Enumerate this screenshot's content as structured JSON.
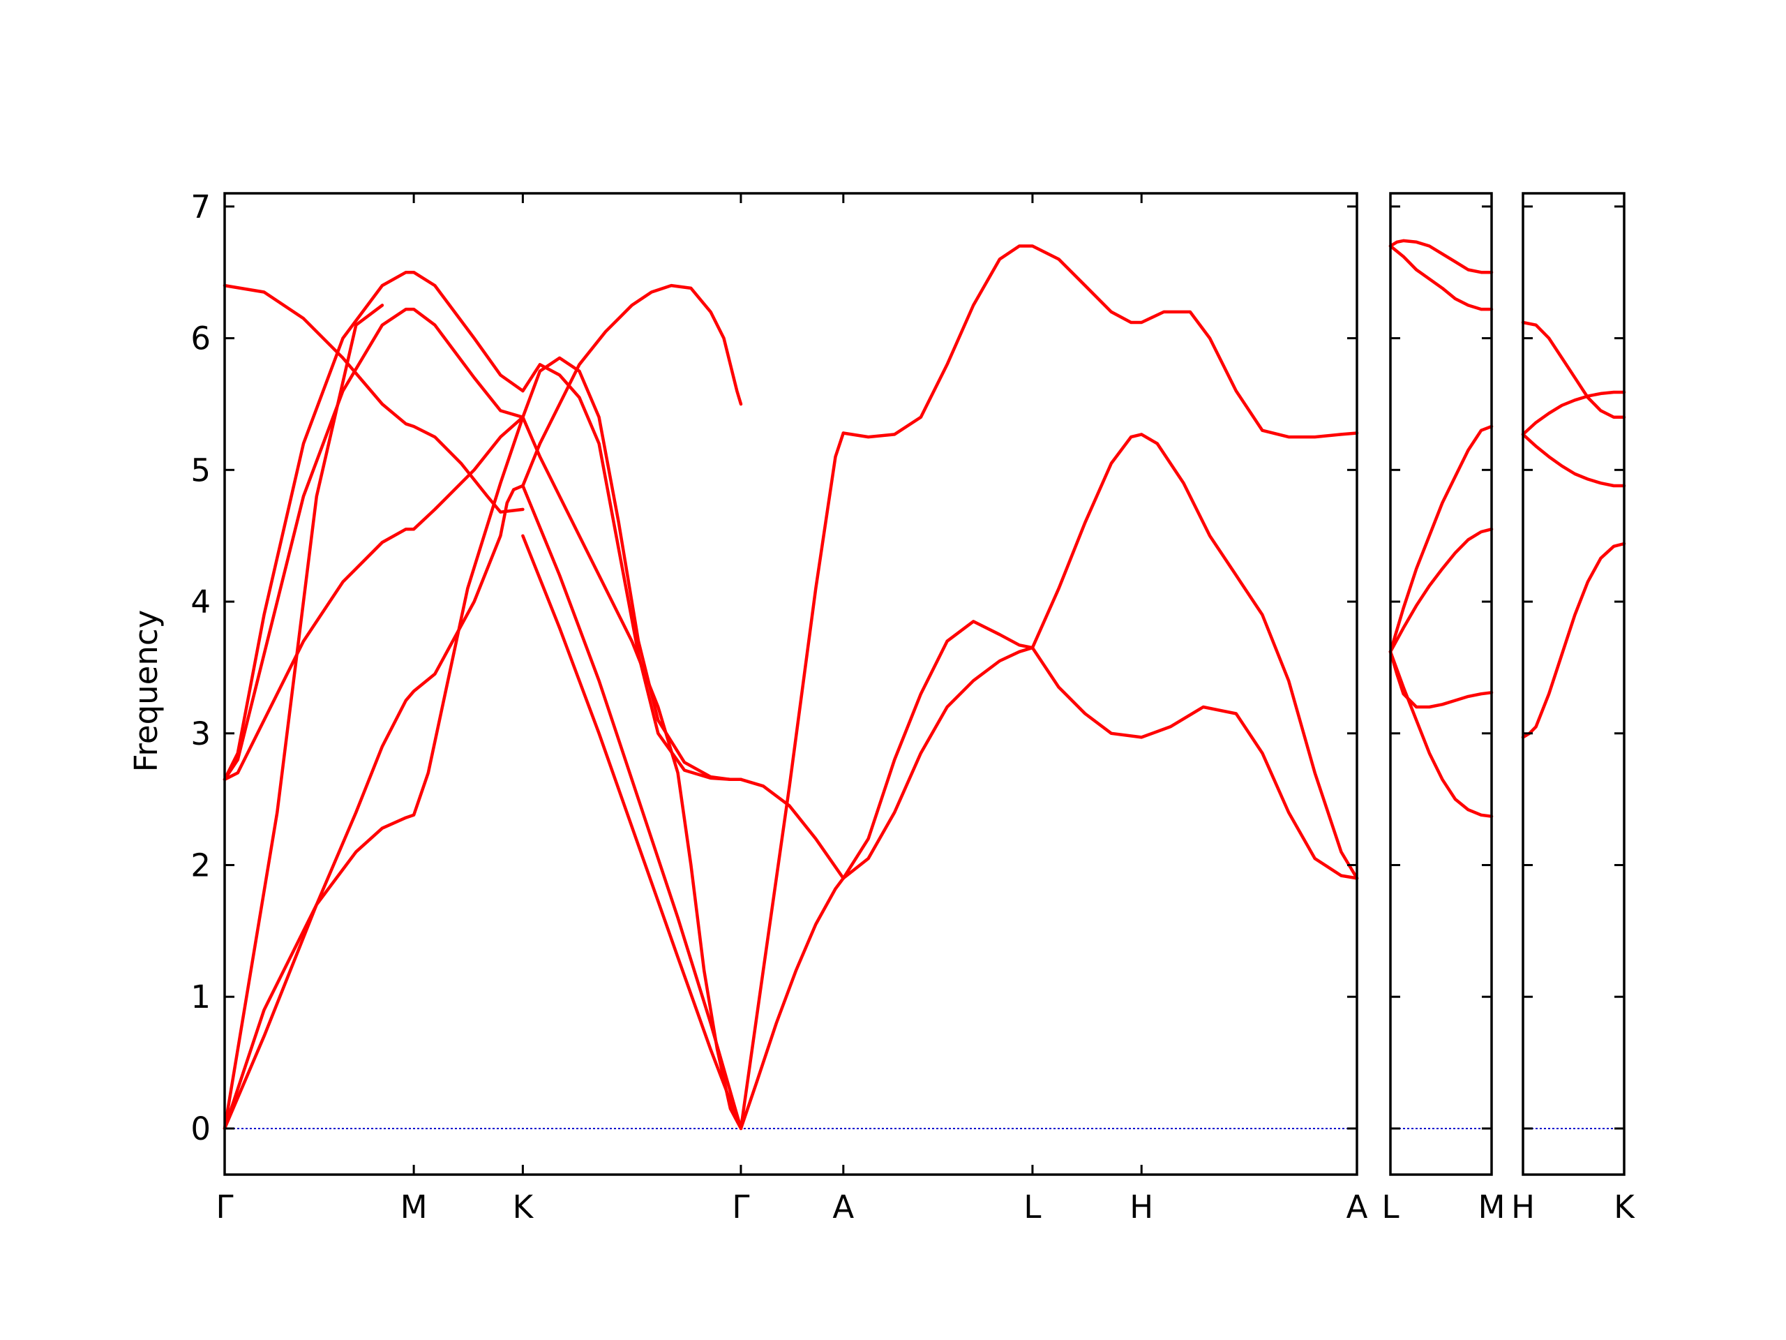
{
  "chart_data": {
    "type": "line",
    "ylabel": "Frequency",
    "ylim": [
      -0.35,
      7.1
    ],
    "yticks": [
      0,
      1,
      2,
      3,
      4,
      5,
      6,
      7
    ],
    "line_color": "#ff0000",
    "zero_line_color": "#0000cc",
    "grid": false,
    "panels": [
      {
        "xlim": [
          0,
          8.62
        ],
        "xticks": [
          {
            "pos": 0.0,
            "label": "Γ"
          },
          {
            "pos": 1.44,
            "label": "M"
          },
          {
            "pos": 2.27,
            "label": "K"
          },
          {
            "pos": 3.93,
            "label": "Γ"
          },
          {
            "pos": 4.71,
            "label": "A"
          },
          {
            "pos": 6.15,
            "label": "L"
          },
          {
            "pos": 6.98,
            "label": "H"
          },
          {
            "pos": 8.62,
            "label": "A"
          }
        ],
        "series": [
          {
            "x": [
              0,
              0.3,
              0.7,
              1.0,
              1.2,
              1.38,
              1.44,
              1.55,
              1.85,
              2.1,
              2.27
            ],
            "y": [
              0,
              0.9,
              1.7,
              2.1,
              2.28,
              2.36,
              2.38,
              2.7,
              4.1,
              4.9,
              5.4
            ]
          },
          {
            "x": [
              0,
              0.3,
              0.7,
              1.0,
              1.2,
              1.38,
              1.44,
              1.6,
              1.9,
              2.1,
              2.15,
              2.2,
              2.27
            ],
            "y": [
              0,
              0.7,
              1.7,
              2.4,
              2.9,
              3.25,
              3.32,
              3.45,
              4.0,
              4.5,
              4.75,
              4.85,
              4.88
            ]
          },
          {
            "x": [
              0,
              0.1,
              0.3,
              0.6,
              0.9,
              1.2,
              1.38,
              1.44,
              1.6,
              1.9,
              2.1,
              2.27
            ],
            "y": [
              2.65,
              2.7,
              3.1,
              3.7,
              4.15,
              4.45,
              4.55,
              4.55,
              4.7,
              5.0,
              5.25,
              5.4
            ]
          },
          {
            "x": [
              0,
              0.1,
              0.3,
              0.6,
              0.9,
              1.2,
              1.38,
              1.44,
              1.6,
              1.9,
              2.1,
              2.27
            ],
            "y": [
              2.65,
              2.8,
              3.6,
              4.8,
              5.6,
              6.1,
              6.22,
              6.22,
              6.1,
              5.7,
              5.45,
              5.4
            ]
          },
          {
            "x": [
              0,
              0.1,
              0.3,
              0.6,
              0.9,
              1.2,
              1.38,
              1.44,
              1.6,
              1.9,
              2.1,
              2.27
            ],
            "y": [
              2.65,
              2.85,
              3.9,
              5.2,
              6.0,
              6.4,
              6.5,
              6.5,
              6.4,
              6.0,
              5.72,
              5.6
            ]
          },
          {
            "x": [
              0,
              0.3,
              0.6,
              0.9,
              1.2,
              1.38,
              1.44,
              1.6,
              1.8,
              2.0,
              2.1,
              2.27
            ],
            "y": [
              6.4,
              6.35,
              6.15,
              5.85,
              5.5,
              5.35,
              5.33,
              5.25,
              5.05,
              4.8,
              4.68,
              4.7
            ]
          },
          {
            "x": [
              0,
              0.4,
              0.7,
              1.0,
              1.2
            ],
            "y": [
              0,
              2.4,
              4.8,
              6.1,
              6.25
            ]
          },
          {
            "x": [
              2.27,
              2.55,
              2.85,
              3.15,
              3.45,
              3.7,
              3.93
            ],
            "y": [
              4.88,
              4.2,
              3.4,
              2.5,
              1.6,
              0.8,
              0
            ]
          },
          {
            "x": [
              2.27,
              2.55,
              2.85,
              3.15,
              3.45,
              3.7,
              3.93
            ],
            "y": [
              4.5,
              3.8,
              3.0,
              2.15,
              1.3,
              0.6,
              0
            ]
          },
          {
            "x": [
              2.27,
              2.4,
              2.6,
              2.85,
              3.1,
              3.3,
              3.45,
              3.55,
              3.65,
              3.75,
              3.85,
              3.93
            ],
            "y": [
              5.4,
              5.1,
              4.7,
              4.2,
              3.7,
              3.2,
              2.7,
              2.0,
              1.2,
              0.6,
              0.15,
              0
            ]
          },
          {
            "x": [
              2.27,
              2.4,
              2.55,
              2.7,
              2.9,
              3.1,
              3.25,
              3.4,
              3.55,
              3.7,
              3.8,
              3.9,
              3.93
            ],
            "y": [
              4.88,
              5.2,
              5.5,
              5.8,
              6.05,
              6.25,
              6.35,
              6.4,
              6.38,
              6.2,
              6.0,
              5.6,
              5.5
            ]
          },
          {
            "x": [
              2.27,
              2.4,
              2.55,
              2.7,
              2.85,
              3.0,
              3.15,
              3.3,
              3.5,
              3.7,
              3.85,
              3.93
            ],
            "y": [
              5.4,
              5.75,
              5.85,
              5.75,
              5.4,
              4.6,
              3.7,
              3.1,
              2.78,
              2.67,
              2.65,
              2.65
            ]
          },
          {
            "x": [
              2.27,
              2.4,
              2.55,
              2.7,
              2.85,
              3.0,
              3.15,
              3.3,
              3.5,
              3.7,
              3.85,
              3.93
            ],
            "y": [
              5.6,
              5.8,
              5.72,
              5.55,
              5.2,
              4.4,
              3.6,
              3.0,
              2.72,
              2.66,
              2.65,
              2.65
            ]
          },
          {
            "x": [
              3.93,
              4.05,
              4.2,
              4.35,
              4.5,
              4.65,
              4.71
            ],
            "y": [
              0,
              0.35,
              0.8,
              1.2,
              1.55,
              1.82,
              1.9
            ]
          },
          {
            "x": [
              3.93,
              4.1,
              4.3,
              4.5,
              4.65,
              4.71
            ],
            "y": [
              0,
              1.2,
              2.6,
              4.1,
              5.1,
              5.28
            ]
          },
          {
            "x": [
              3.93,
              4.1,
              4.3,
              4.5,
              4.71
            ],
            "y": [
              2.65,
              2.6,
              2.45,
              2.2,
              1.9
            ]
          },
          {
            "x": [
              4.71,
              4.9,
              5.1,
              5.3,
              5.5,
              5.7,
              5.9,
              6.05,
              6.15
            ],
            "y": [
              1.9,
              2.2,
              2.8,
              3.3,
              3.7,
              3.85,
              3.75,
              3.67,
              3.65
            ]
          },
          {
            "x": [
              4.71,
              4.9,
              5.1,
              5.3,
              5.5,
              5.7,
              5.9,
              6.05,
              6.15
            ],
            "y": [
              1.9,
              2.05,
              2.4,
              2.85,
              3.2,
              3.4,
              3.55,
              3.62,
              3.65
            ]
          },
          {
            "x": [
              6.15,
              6.35,
              6.55,
              6.75,
              6.9,
              6.98,
              7.1,
              7.3,
              7.5,
              7.7,
              7.9,
              8.1,
              8.3,
              8.5,
              8.62
            ],
            "y": [
              3.65,
              4.1,
              4.6,
              5.05,
              5.25,
              5.27,
              5.2,
              4.9,
              4.5,
              4.2,
              3.9,
              3.4,
              2.7,
              2.1,
              1.9
            ]
          },
          {
            "x": [
              6.15,
              6.35,
              6.55,
              6.75,
              6.98,
              7.2,
              7.45,
              7.7,
              7.9,
              8.1,
              8.3,
              8.5,
              8.62
            ],
            "y": [
              3.65,
              3.35,
              3.15,
              3.0,
              2.97,
              3.05,
              3.2,
              3.15,
              2.85,
              2.4,
              2.05,
              1.92,
              1.9
            ]
          },
          {
            "x": [
              4.71,
              4.9,
              5.1,
              5.3,
              5.5,
              5.7,
              5.9,
              6.05,
              6.15,
              6.35,
              6.55,
              6.75,
              6.9,
              6.98,
              7.15,
              7.35,
              7.5,
              7.7,
              7.9,
              8.1,
              8.3,
              8.5,
              8.62
            ],
            "y": [
              5.28,
              5.25,
              5.27,
              5.4,
              5.8,
              6.25,
              6.6,
              6.7,
              6.7,
              6.6,
              6.4,
              6.2,
              6.12,
              6.12,
              6.2,
              6.2,
              6.0,
              5.6,
              5.3,
              5.25,
              5.25,
              5.27,
              5.28
            ]
          }
        ]
      },
      {
        "xlim": [
          0,
          0.78
        ],
        "xticks": [
          {
            "pos": 0.0,
            "label": "L"
          },
          {
            "pos": 0.78,
            "label": "M"
          }
        ],
        "series": [
          {
            "x": [
              0,
              0.05,
              0.1,
              0.2,
              0.3,
              0.4,
              0.5,
              0.6,
              0.7,
              0.78
            ],
            "y": [
              6.7,
              6.73,
              6.74,
              6.73,
              6.7,
              6.64,
              6.58,
              6.52,
              6.5,
              6.5
            ]
          },
          {
            "x": [
              0,
              0.1,
              0.2,
              0.3,
              0.4,
              0.5,
              0.6,
              0.7,
              0.78
            ],
            "y": [
              6.7,
              6.62,
              6.52,
              6.45,
              6.38,
              6.3,
              6.25,
              6.22,
              6.22
            ]
          },
          {
            "x": [
              0,
              0.1,
              0.2,
              0.3,
              0.4,
              0.5,
              0.6,
              0.7,
              0.78
            ],
            "y": [
              3.62,
              3.95,
              4.25,
              4.5,
              4.75,
              4.95,
              5.15,
              5.3,
              5.33
            ]
          },
          {
            "x": [
              0,
              0.1,
              0.2,
              0.3,
              0.4,
              0.5,
              0.6,
              0.7,
              0.78
            ],
            "y": [
              3.62,
              3.8,
              3.97,
              4.12,
              4.25,
              4.37,
              4.47,
              4.53,
              4.55
            ]
          },
          {
            "x": [
              0,
              0.05,
              0.1,
              0.2,
              0.3,
              0.4,
              0.5,
              0.6,
              0.7,
              0.78
            ],
            "y": [
              3.62,
              3.45,
              3.3,
              3.2,
              3.2,
              3.22,
              3.25,
              3.28,
              3.3,
              3.31
            ]
          },
          {
            "x": [
              0,
              0.1,
              0.2,
              0.3,
              0.4,
              0.5,
              0.6,
              0.7,
              0.78
            ],
            "y": [
              3.62,
              3.35,
              3.1,
              2.85,
              2.65,
              2.5,
              2.42,
              2.38,
              2.37
            ]
          }
        ]
      },
      {
        "xlim": [
          0,
          0.78
        ],
        "xticks": [
          {
            "pos": 0.0,
            "label": "H"
          },
          {
            "pos": 0.78,
            "label": "K"
          }
        ],
        "series": [
          {
            "x": [
              0,
              0.1,
              0.2,
              0.3,
              0.4,
              0.5,
              0.6,
              0.7,
              0.78
            ],
            "y": [
              6.12,
              6.1,
              6.0,
              5.85,
              5.7,
              5.55,
              5.45,
              5.4,
              5.4
            ]
          },
          {
            "x": [
              0,
              0.1,
              0.2,
              0.3,
              0.4,
              0.5,
              0.6,
              0.7,
              0.78
            ],
            "y": [
              5.27,
              5.36,
              5.43,
              5.49,
              5.53,
              5.56,
              5.58,
              5.59,
              5.59
            ]
          },
          {
            "x": [
              0,
              0.1,
              0.2,
              0.3,
              0.4,
              0.5,
              0.6,
              0.7,
              0.78
            ],
            "y": [
              5.27,
              5.18,
              5.1,
              5.03,
              4.97,
              4.93,
              4.9,
              4.88,
              4.88
            ]
          },
          {
            "x": [
              0,
              0.05,
              0.1,
              0.2,
              0.3,
              0.4,
              0.5,
              0.6,
              0.7,
              0.78
            ],
            "y": [
              2.97,
              3.0,
              3.05,
              3.3,
              3.6,
              3.9,
              4.15,
              4.33,
              4.42,
              4.44
            ]
          }
        ]
      }
    ]
  }
}
